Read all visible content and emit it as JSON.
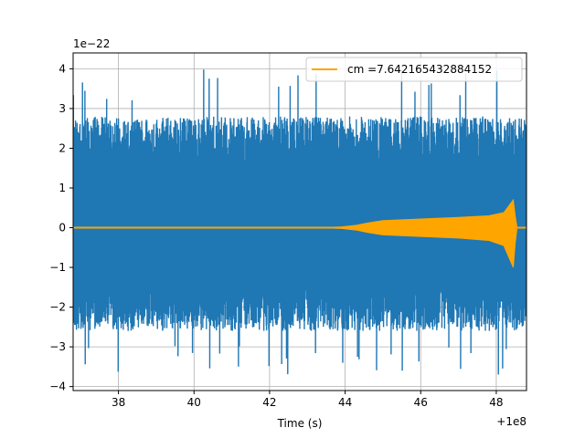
{
  "chart_data": {
    "type": "line",
    "title": "",
    "xlabel": "Time (s)",
    "ylabel": "",
    "x_offset_label": "+1e8",
    "y_scale_label": "1e−22",
    "xlim": [
      36.8,
      48.8
    ],
    "ylim": [
      -4.1,
      4.4
    ],
    "x_ticks": [
      38,
      40,
      42,
      44,
      46,
      48
    ],
    "x_tick_labels": [
      "38",
      "40",
      "42",
      "44",
      "46",
      "48"
    ],
    "y_ticks": [
      -4,
      -3,
      -2,
      -1,
      0,
      1,
      2,
      3,
      4
    ],
    "y_tick_labels": [
      "−4",
      "−3",
      "−2",
      "−1",
      "0",
      "1",
      "2",
      "3",
      "4"
    ],
    "grid": true,
    "legend_position": "upper-right",
    "series": [
      {
        "name": "",
        "color": "#1f77b4",
        "description": "noisy strain time series",
        "envelope_range_typical": [
          -2.6,
          2.8
        ],
        "peak_max": 4.0,
        "peak_min": -3.7
      },
      {
        "name": "cm =7.642165432884152",
        "color": "#ffa500",
        "description": "chirp template",
        "envelope": {
          "x": [
            36.8,
            43.4,
            43.9,
            44.3,
            44.6,
            45.0,
            46.0,
            47.0,
            47.8,
            48.2,
            48.45,
            48.5,
            48.55,
            48.8
          ],
          "upper": [
            0,
            0,
            0.02,
            0.06,
            0.12,
            0.18,
            0.22,
            0.26,
            0.3,
            0.38,
            0.7,
            0.3,
            0,
            0
          ],
          "lower": [
            0,
            0,
            -0.02,
            -0.06,
            -0.12,
            -0.18,
            -0.22,
            -0.26,
            -0.32,
            -0.45,
            -1.0,
            -0.4,
            0,
            0
          ]
        }
      }
    ]
  }
}
